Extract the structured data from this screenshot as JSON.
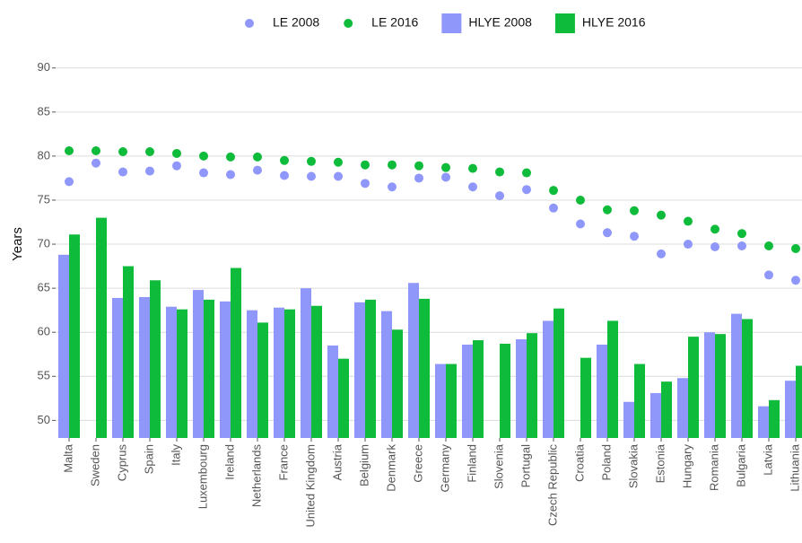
{
  "chart_data": {
    "type": "bar",
    "y_label": "Years",
    "categories": [
      "Malta",
      "Sweden",
      "Cyprus",
      "Spain",
      "Italy",
      "Luxembourg",
      "Ireland",
      "Netherlands",
      "France",
      "United Kingdom",
      "Austria",
      "Belgium",
      "Denmark",
      "Greece",
      "Germany",
      "Finland",
      "Slovenia",
      "Portugal",
      "Czech Republic",
      "Croatia",
      "Poland",
      "Slovakia",
      "Estonia",
      "Hungary",
      "Romania",
      "Bulgaria",
      "Latvia",
      "Lithuania"
    ],
    "series": [
      {
        "name": "LE 2008",
        "type": "scatter",
        "color": "#8f97fb",
        "values": [
          77.1,
          79.2,
          78.2,
          78.3,
          78.9,
          78.1,
          77.9,
          78.4,
          77.8,
          77.7,
          77.7,
          76.9,
          76.5,
          77.5,
          77.6,
          76.5,
          75.5,
          76.2,
          74.1,
          72.3,
          71.3,
          70.9,
          68.9,
          70.0,
          69.7,
          69.8,
          66.5,
          65.9
        ]
      },
      {
        "name": "LE 2016",
        "type": "scatter",
        "color": "#0fbb3a",
        "values": [
          80.6,
          80.6,
          80.5,
          80.5,
          80.3,
          80.0,
          79.9,
          79.9,
          79.5,
          79.4,
          79.3,
          79.0,
          79.0,
          78.9,
          78.7,
          78.6,
          78.2,
          78.1,
          76.1,
          75.0,
          73.9,
          73.8,
          73.3,
          72.6,
          71.7,
          71.2,
          69.8,
          69.5
        ]
      },
      {
        "name": "HLYE 2008",
        "type": "bar",
        "color": "#8f97fb",
        "values": [
          68.8,
          null,
          63.9,
          64.0,
          62.9,
          64.8,
          63.5,
          62.5,
          62.8,
          65.0,
          58.5,
          63.4,
          62.4,
          65.6,
          56.4,
          58.6,
          null,
          59.2,
          61.3,
          null,
          58.6,
          52.1,
          53.1,
          54.8,
          60.0,
          62.1,
          51.6,
          54.5
        ]
      },
      {
        "name": "HLYE 2016",
        "type": "bar",
        "color": "#0fbb3a",
        "values": [
          71.1,
          73.0,
          67.5,
          65.9,
          62.6,
          63.7,
          67.3,
          61.1,
          62.6,
          63.0,
          57.0,
          63.7,
          60.3,
          63.8,
          56.4,
          59.1,
          58.7,
          59.9,
          62.7,
          57.1,
          61.3,
          56.4,
          54.4,
          59.5,
          59.8,
          61.5,
          52.3,
          56.2
        ]
      }
    ],
    "ylim": [
      48,
      91.4
    ],
    "yticks": [
      50,
      55,
      60,
      65,
      70,
      75,
      80,
      85,
      90
    ],
    "grid": true,
    "legend": "top"
  }
}
